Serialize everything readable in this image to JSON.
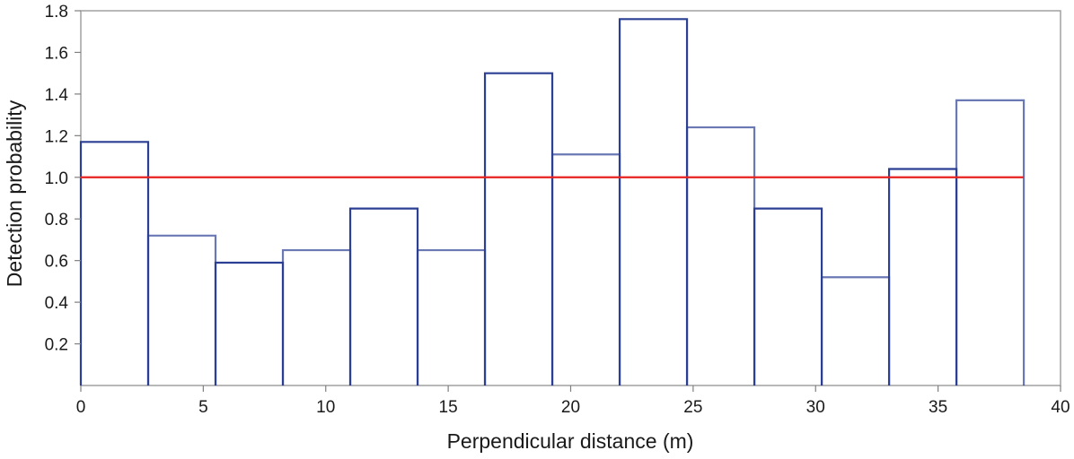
{
  "chart_data": {
    "type": "bar",
    "title": "",
    "xlabel": "Perpendicular distance (m)",
    "ylabel": "Detection probability",
    "xlim": [
      0,
      40
    ],
    "ylim": [
      0,
      1.8
    ],
    "x_ticks": [
      "0",
      "5",
      "10",
      "15",
      "20",
      "25",
      "30",
      "35",
      "40"
    ],
    "y_ticks": [
      "0.2",
      "0.4",
      "0.6",
      "0.8",
      "1.0",
      "1.2",
      "1.4",
      "1.6",
      "1.8"
    ],
    "grid": false,
    "bin_width": 2.75,
    "bins": [
      {
        "x0": 0.0,
        "x1": 2.75,
        "value": 1.17
      },
      {
        "x0": 2.75,
        "x1": 5.5,
        "value": 0.72
      },
      {
        "x0": 5.5,
        "x1": 8.25,
        "value": 0.59
      },
      {
        "x0": 8.25,
        "x1": 11.0,
        "value": 0.65
      },
      {
        "x0": 11.0,
        "x1": 13.75,
        "value": 0.85
      },
      {
        "x0": 13.75,
        "x1": 16.5,
        "value": 0.65
      },
      {
        "x0": 16.5,
        "x1": 19.25,
        "value": 1.5
      },
      {
        "x0": 19.25,
        "x1": 22.0,
        "value": 1.11
      },
      {
        "x0": 22.0,
        "x1": 24.75,
        "value": 1.76
      },
      {
        "x0": 24.75,
        "x1": 27.5,
        "value": 1.24
      },
      {
        "x0": 27.5,
        "x1": 30.25,
        "value": 0.85
      },
      {
        "x0": 30.25,
        "x1": 33.0,
        "value": 0.52
      },
      {
        "x0": 33.0,
        "x1": 35.75,
        "value": 1.04
      },
      {
        "x0": 35.75,
        "x1": 38.5,
        "value": 1.37
      }
    ],
    "reference_line": {
      "y": 1.0,
      "x0": 0,
      "x1": 38.5,
      "color": "#e8231f"
    },
    "bar_color": "#2b3f94"
  }
}
